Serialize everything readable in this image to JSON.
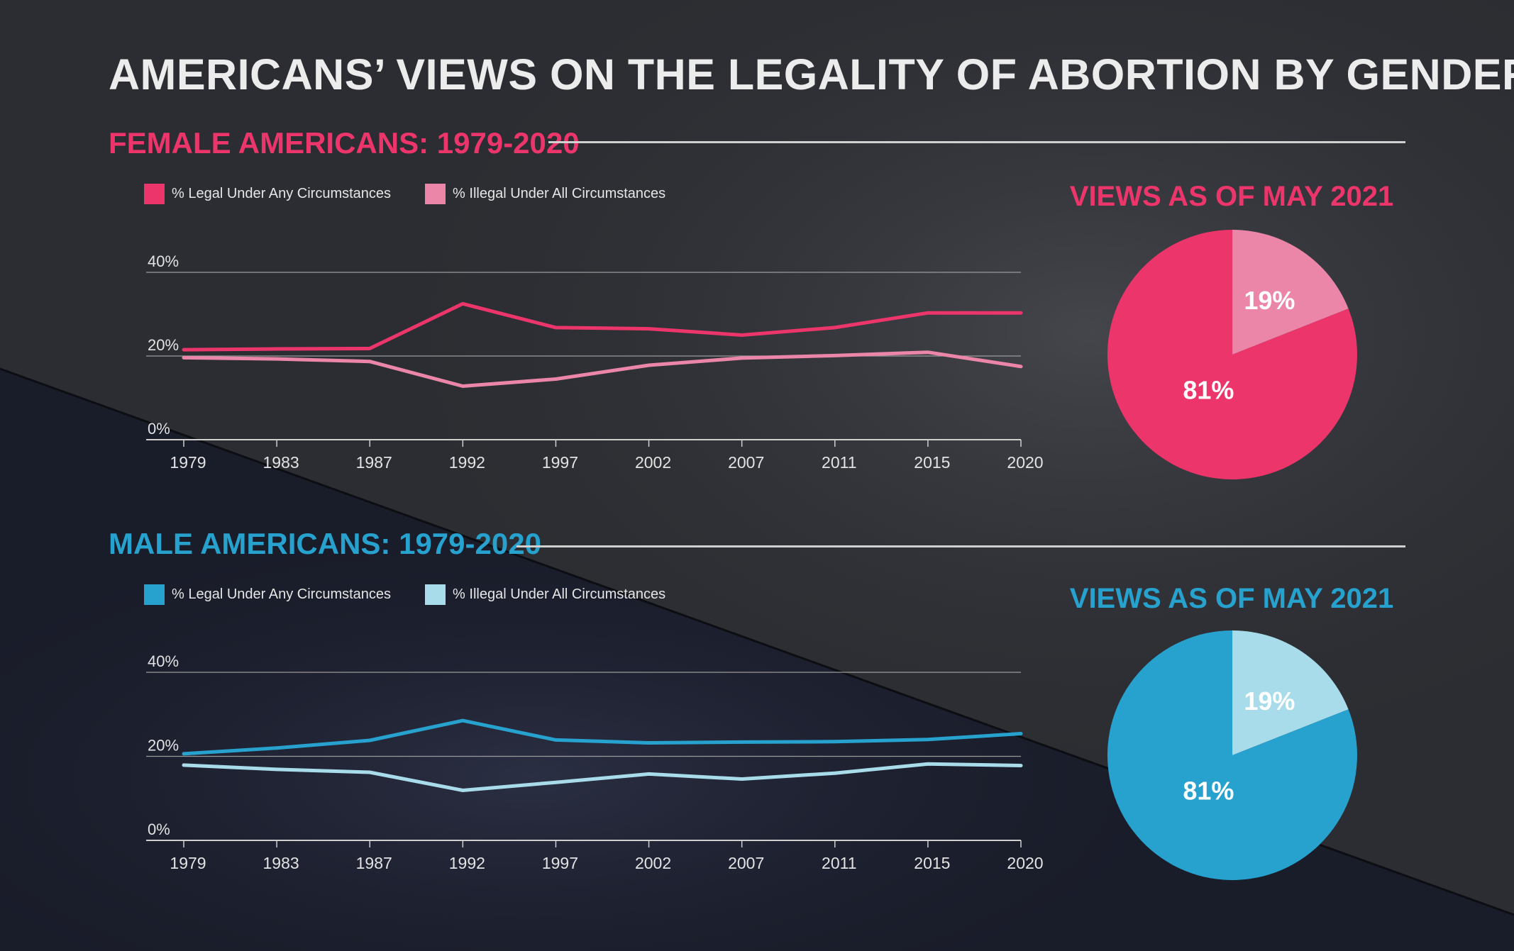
{
  "title": "AMERICANS’ VIEWS ON THE LEGALITY OF ABORTION BY GENDER",
  "colors": {
    "female_legal": "#ec356b",
    "female_illegal": "#eb86a8",
    "male_legal": "#27a2cf",
    "male_illegal": "#a8dceb",
    "title": "#ececec",
    "background": "#2a2c31"
  },
  "sections": [
    {
      "heading": "FEMALE AMERICANS: 1979-2020",
      "pie_title": "VIEWS AS OF MAY 2021",
      "legend": [
        "% Legal Under Any Circumstances",
        "% Illegal Under All Circumstances"
      ]
    },
    {
      "heading": "MALE AMERICANS: 1979-2020",
      "pie_title": "VIEWS AS OF MAY 2021",
      "legend": [
        "% Legal Under Any Circumstances",
        "% Illegal Under All Circumstances"
      ]
    }
  ],
  "chart_data": [
    {
      "type": "line",
      "title": "FEMALE AMERICANS: 1979-2020",
      "x": [
        1979,
        1983,
        1987,
        1992,
        1997,
        2002,
        2007,
        2011,
        2015,
        2020
      ],
      "x_tick_labels": [
        "1979",
        "1983",
        "1987",
        "1992",
        "1997",
        "2002",
        "2007",
        "2011",
        "2015",
        "2020"
      ],
      "ylim": [
        0,
        40
      ],
      "y_ticks": [
        "0%",
        "20%",
        "40%"
      ],
      "grid": true,
      "legend_position": "top-left",
      "series": [
        {
          "name": "% Legal Under Any Circumstances",
          "values": [
            21.5,
            21.7,
            21.8,
            32.5,
            26.8,
            26.5,
            25,
            26.8,
            30.3,
            30.3
          ]
        },
        {
          "name": "% Illegal Under All Circumstances",
          "values": [
            19.6,
            19.3,
            18.7,
            12.8,
            14.5,
            17.8,
            19.5,
            20.1,
            20.9,
            17.5
          ]
        }
      ]
    },
    {
      "type": "pie",
      "title": "VIEWS AS OF MAY 2021",
      "categories": [
        "% Legal Under Any Circumstances",
        "% Illegal Under All Circumstances"
      ],
      "values": [
        81,
        19
      ],
      "labels": [
        "81%",
        "19%"
      ]
    },
    {
      "type": "line",
      "title": "MALE AMERICANS: 1979-2020",
      "x": [
        1979,
        1983,
        1987,
        1992,
        1997,
        2002,
        2007,
        2011,
        2015,
        2020
      ],
      "x_tick_labels": [
        "1979",
        "1983",
        "1987",
        "1992",
        "1997",
        "2002",
        "2007",
        "2011",
        "2015",
        "2020"
      ],
      "ylim": [
        0,
        40
      ],
      "y_ticks": [
        "0%",
        "20%",
        "40%"
      ],
      "grid": true,
      "legend_position": "top-left",
      "series": [
        {
          "name": "% Legal Under Any Circumstances",
          "values": [
            20.6,
            22,
            23.8,
            28.5,
            23.9,
            23.2,
            23.4,
            23.5,
            24,
            25.4
          ]
        },
        {
          "name": "% Illegal Under All Circumstances",
          "values": [
            17.9,
            16.9,
            16.2,
            11.9,
            13.8,
            15.8,
            14.6,
            16,
            18.2,
            17.8
          ]
        }
      ]
    },
    {
      "type": "pie",
      "title": "VIEWS AS OF MAY 2021",
      "categories": [
        "% Legal Under Any Circumstances",
        "% Illegal Under All Circumstances"
      ],
      "values": [
        81,
        19
      ],
      "labels": [
        "81%",
        "19%"
      ]
    }
  ]
}
